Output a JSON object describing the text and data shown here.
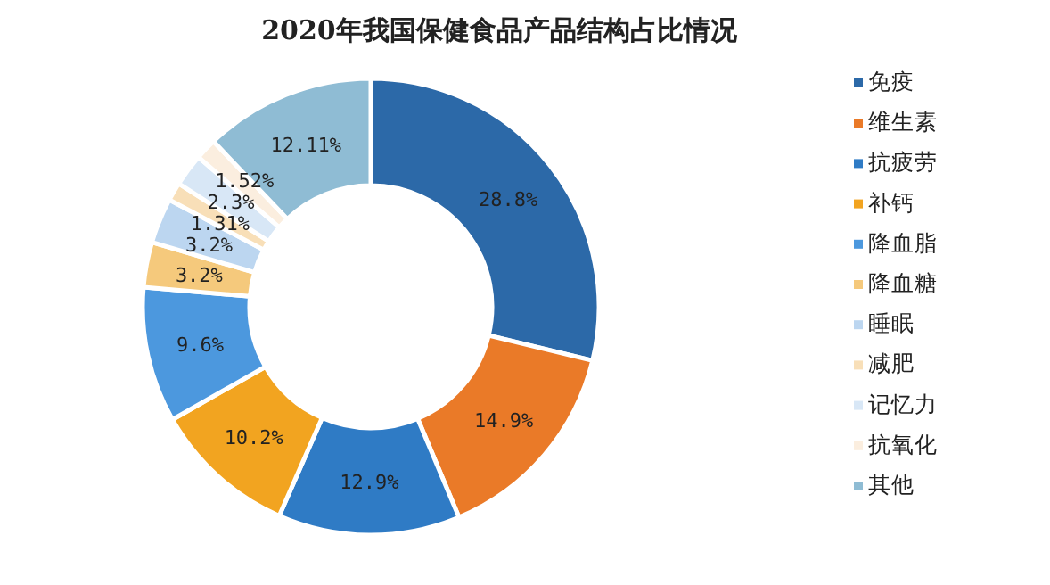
{
  "chart_data": {
    "type": "donut",
    "title": "2020年我国保健食品产品结构占比情况",
    "categories": [
      "免疫",
      "维生素",
      "抗疲劳",
      "补钙",
      "降血脂",
      "降血糖",
      "睡眠",
      "减肥",
      "记忆力",
      "抗氧化",
      "其他"
    ],
    "values": [
      28.8,
      14.9,
      12.9,
      10.2,
      9.6,
      3.2,
      3.2,
      1.31,
      2.3,
      1.52,
      12.11
    ],
    "colors": [
      "#2c69a8",
      "#ea7a28",
      "#2f7bc5",
      "#f2a420",
      "#4c98de",
      "#f5c97c",
      "#bcd6f0",
      "#f8dfb8",
      "#d8e7f6",
      "#fbeedf",
      "#8fbcd4"
    ],
    "value_labels": [
      "28.8%",
      "14.9%",
      "12.9%",
      "10.2%",
      "9.6%",
      "3.2%",
      "3.2%",
      "1.31%",
      "2.3%",
      "1.52%",
      "12.11%"
    ],
    "legend": "right"
  }
}
